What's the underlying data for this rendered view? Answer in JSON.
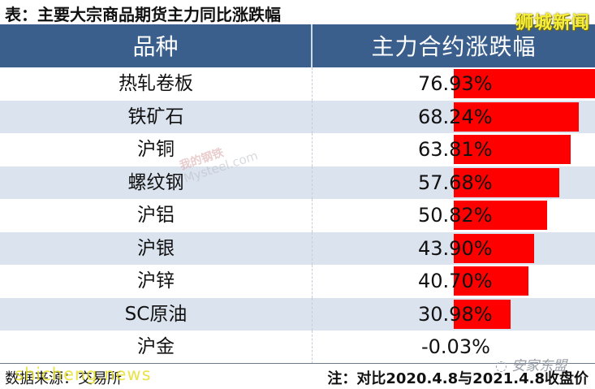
{
  "title": "表：主要大宗商品期货主力同比涨跌幅",
  "watermarks": {
    "top_right": "狮城新闻",
    "mysteel_cn": "我的钢铁",
    "mysteel_en": "Mysteel.com",
    "wechat": "安家东盟",
    "footer_overlay": "shicheng.news"
  },
  "table": {
    "headers": [
      "品种",
      "主力合约涨跌幅"
    ],
    "rows": [
      {
        "name": "热轧卷板",
        "value": "76.93%",
        "pct": 76.93
      },
      {
        "name": "铁矿石",
        "value": "68.24%",
        "pct": 68.24
      },
      {
        "name": "沪铜",
        "value": "63.81%",
        "pct": 63.81
      },
      {
        "name": "螺纹钢",
        "value": "57.68%",
        "pct": 57.68
      },
      {
        "name": "沪铝",
        "value": "50.82%",
        "pct": 50.82
      },
      {
        "name": "沪银",
        "value": "43.90%",
        "pct": 43.9
      },
      {
        "name": "沪锌",
        "value": "40.70%",
        "pct": 40.7
      },
      {
        "name": "SC原油",
        "value": "30.98%",
        "pct": 30.98
      },
      {
        "name": "沪金",
        "value": "-0.03%",
        "pct": -0.03
      }
    ],
    "bar_color": "#ff0000",
    "header_color": "#3b5f8d",
    "alt_row_color": "#dbe3ee"
  },
  "footer": {
    "source": "数据来源：交易所",
    "note": "注：对比2020.4.8与2021.4.8收盘价"
  }
}
